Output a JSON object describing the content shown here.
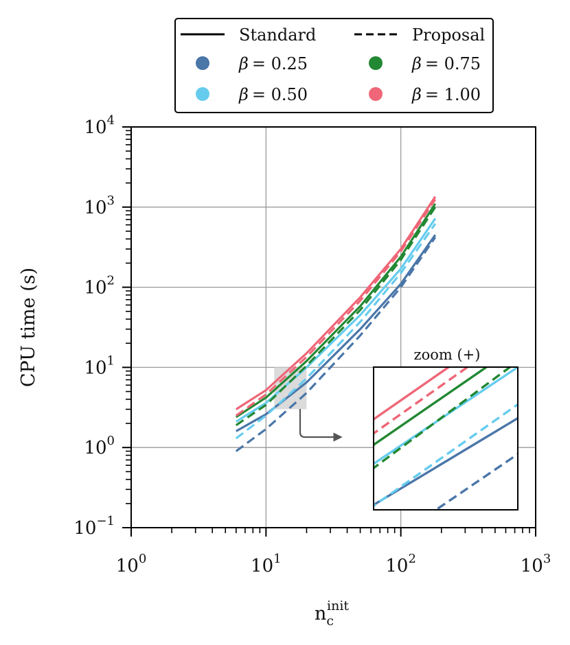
{
  "chart_data": {
    "type": "line",
    "scale": {
      "x": "log",
      "y": "log"
    },
    "xlabel": "n",
    "xlabel_sub": "c",
    "xlabel_sup": "init",
    "ylabel": "CPU time (s)",
    "xlim": [
      1,
      1000
    ],
    "ylim": [
      0.1,
      10000
    ],
    "grid": true,
    "x_ticks": [
      {
        "value": 1,
        "base": "10",
        "exp": "0"
      },
      {
        "value": 10,
        "base": "10",
        "exp": "1"
      },
      {
        "value": 100,
        "base": "10",
        "exp": "2"
      },
      {
        "value": 1000,
        "base": "10",
        "exp": "3"
      }
    ],
    "y_ticks": [
      {
        "value": 0.1,
        "base": "10",
        "exp": "−1"
      },
      {
        "value": 1,
        "base": "10",
        "exp": "0"
      },
      {
        "value": 10,
        "base": "10",
        "exp": "1"
      },
      {
        "value": 100,
        "base": "10",
        "exp": "2"
      },
      {
        "value": 1000,
        "base": "10",
        "exp": "3"
      },
      {
        "value": 10000,
        "base": "10",
        "exp": "4"
      }
    ],
    "legend": {
      "placement": "top-center, above axes",
      "style_entries": [
        {
          "label": "Standard",
          "dash": "solid"
        },
        {
          "label": "Proposal",
          "dash": "dashed"
        }
      ],
      "color_entries": [
        {
          "label_symbol": "β",
          "label_value": "= 0.25",
          "color": "#4a76a8"
        },
        {
          "label_symbol": "β",
          "label_value": "= 0.50",
          "color": "#66ccee"
        },
        {
          "label_symbol": "β",
          "label_value": "= 0.75",
          "color": "#228833"
        },
        {
          "label_symbol": "β",
          "label_value": "= 1.00",
          "color": "#ee6677"
        }
      ]
    },
    "series": [
      {
        "name": "β = 0.25 Standard",
        "color": "#4a76a8",
        "dash": "solid",
        "x": [
          6,
          10,
          20,
          50,
          100,
          180
        ],
        "y": [
          1.6,
          2.6,
          6.5,
          30,
          110,
          450
        ]
      },
      {
        "name": "β = 0.25 Proposal",
        "color": "#4a76a8",
        "dash": "dashed",
        "x": [
          6,
          10,
          20,
          50,
          100,
          180
        ],
        "y": [
          0.9,
          1.7,
          4.8,
          25,
          100,
          420
        ]
      },
      {
        "name": "β = 0.50 Standard",
        "color": "#66ccee",
        "dash": "solid",
        "x": [
          6,
          10,
          20,
          50,
          100,
          180
        ],
        "y": [
          2.1,
          3.6,
          10,
          45,
          170,
          720
        ]
      },
      {
        "name": "β = 0.50 Proposal",
        "color": "#66ccee",
        "dash": "dashed",
        "x": [
          6,
          10,
          20,
          50,
          100,
          180
        ],
        "y": [
          1.3,
          2.5,
          7.3,
          37,
          150,
          620
        ]
      },
      {
        "name": "β = 0.75 Standard",
        "color": "#228833",
        "dash": "solid",
        "x": [
          6,
          10,
          20,
          50,
          100,
          180
        ],
        "y": [
          2.4,
          4.2,
          12,
          58,
          240,
          1100
        ]
      },
      {
        "name": "β = 0.75 Proposal",
        "color": "#228833",
        "dash": "dashed",
        "x": [
          6,
          10,
          20,
          50,
          100,
          180
        ],
        "y": [
          1.9,
          3.4,
          10.5,
          52,
          220,
          1000
        ]
      },
      {
        "name": "β = 1.00 Standard",
        "color": "#ee6677",
        "dash": "solid",
        "x": [
          6,
          10,
          20,
          50,
          100,
          180
        ],
        "y": [
          3.0,
          5.2,
          15,
          75,
          300,
          1350
        ]
      },
      {
        "name": "β = 1.00 Proposal",
        "color": "#ee6677",
        "dash": "dashed",
        "x": [
          6,
          10,
          20,
          50,
          100,
          180
        ],
        "y": [
          2.5,
          4.6,
          13.5,
          68,
          280,
          1250
        ]
      }
    ],
    "zoom_region": {
      "xlim": [
        11.5,
        20
      ],
      "ylim": [
        3,
        10
      ]
    },
    "inset": {
      "title": "zoom (+)",
      "placement": "lower-right"
    }
  }
}
